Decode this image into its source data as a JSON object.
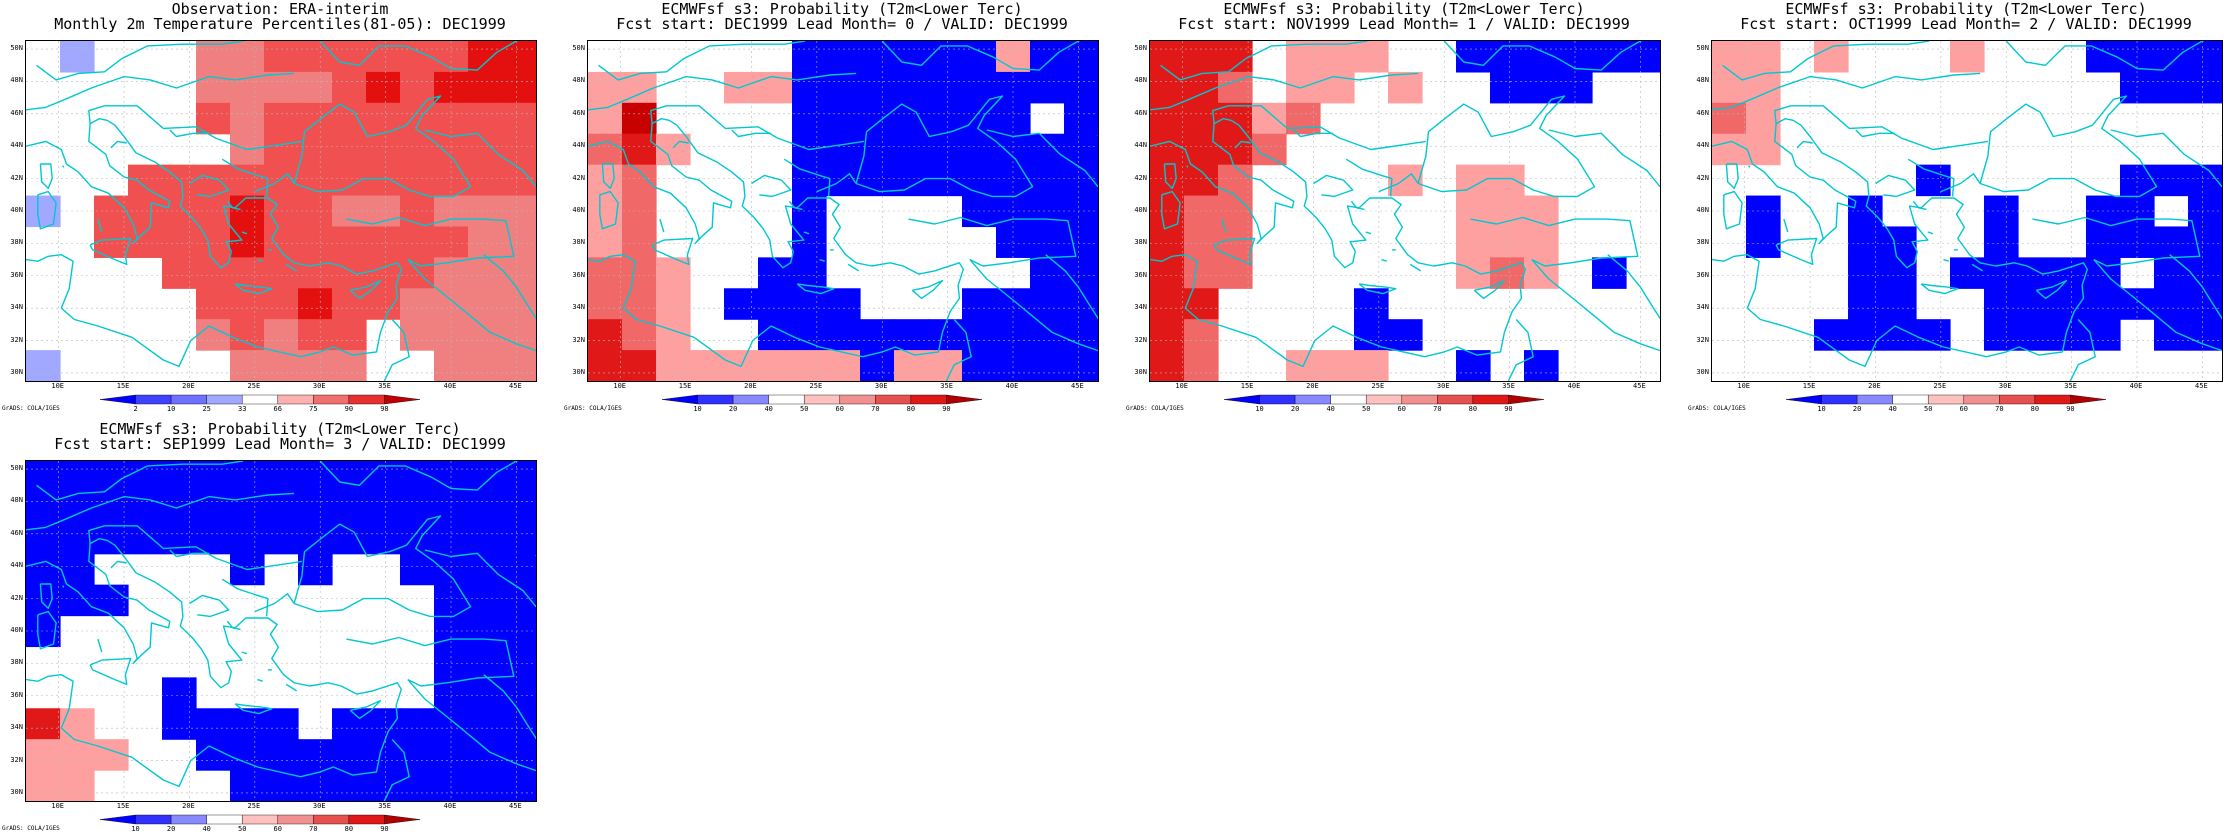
{
  "panels": [
    {
      "id": "obs",
      "title1": "Observation: ERA-interim",
      "title2": "Monthly 2m Temperature Percentiles(81-05): DEC1999",
      "scale": "percentile",
      "grid": [
        "W@WWWGGHHHHHHJJ",
        "WWWWWGGGGHJHJJJ",
        "WWWWWHGHHHHHHHH",
        "WWWWWWGHHHHHHHH",
        "WWWHHHHHHHHHHHH",
        "3WHHHHJHHGGHGGG",
        "WWHHHHJHHHHHHGG",
        "WWWWHHHHHHHHGGG",
        "WWWWWHHHJHHGGGG",
        "WWWWWGHGHHWGGGG",
        "@WWWWWGGGGWWGGG"
      ]
    },
    {
      "id": "fc0",
      "title1": "ECMWFsf s3: Probability (T2m<Lower Terc)",
      "title2": "Fcst start: DEC1999  Lead Month= 0 / VALID: DEC1999",
      "scale": "probability",
      "grid": [
        "WWWWWWBBBBBBRBB",
        "RRWWRRBBBBBBBBB",
        "RKWWWWBBBBBBBWB",
        "PSRWWWBBBBBBBBB",
        "RPWWWWBBBBBBBBB",
        "RPWWWWBWWWWBBBB",
        "RPWWWWBWWWWWBBB",
        "PPRWWBBWWWWWWBB",
        "PPRWBBBBWWWBBBB",
        "SPRWWBBBBBBBBBB",
        "SSRRRRRRBRRBBBB"
      ]
    },
    {
      "id": "fc1",
      "title1": "ECMWFsf s3: Probability (T2m<Lower Terc)",
      "title2": "Fcst start: NOV1999  Lead Month= 1 / VALID: DEC1999",
      "scale": "probability",
      "grid": [
        "SSSWRRRWWBBBBBB",
        "SSPWRRWRWWBBBWW",
        "SSSRPWWWWWWWWWW",
        "SSSPWWWWWWWWWWW",
        "SSPWWWWRWRRWWWW",
        "SPPWWWWWWRRRWWW",
        "SPPWWWWWWRRRWWW",
        "SPPWWWWWWRPRWBW",
        "SSWWWWBWWWWWWWW",
        "SPWWWWBBWWWWWWW",
        "SPWWRRRWWBWBWWW"
      ]
    },
    {
      "id": "fc2",
      "title1": "ECMWFsf s3: Probability (T2m<Lower Terc)",
      "title2": "Fcst start: OCT1999  Lead Month= 2 / VALID: DEC1999",
      "scale": "probability",
      "grid": [
        "RRWRWWWRWWWBBBB",
        "RRWWWWWWWWWWBBB",
        "PRWWWWWWWWWWWWW",
        "RRWWWWWWWWWWWWW",
        "WWWWWWBWWWWWBBB",
        "WBWWBWWWBWWBBWB",
        "WBWWBBWWBWWBBBB",
        "WWWWBBWBBBBBWBB",
        "WWWWBBWWBBBBBBB",
        "WWWBBBBWBBBBWBB",
        "WWWWWWWWWWWWWWW"
      ]
    },
    {
      "id": "fc3",
      "title1": "ECMWFsf s3: Probability (T2m<Lower Terc)",
      "title2": "Fcst start: SEP1999  Lead Month= 3 / VALID: DEC1999",
      "scale": "probability",
      "grid": [
        "BBBBBBBBBBBBBBB",
        "BBBBBBBBBBBBBBB",
        "BBBBBBBBBBBBBBB",
        "BBWWWWBWBWWBBBB",
        "BBBWWWWWWWWWBBB",
        "BWWWWWWWWWWWBBB",
        "WWWWWWWWWWWWBBB",
        "WWWWBWWWWWWWBBB",
        "SRWWBBBBWBBBBBB",
        "RRRWWBBBBBBBBBB",
        "RRWWWWBBBBBBBBB"
      ]
    }
  ],
  "color_key": {
    "W": "#ffffff",
    "B": "#0000ff",
    "3": "#a0a8ff",
    "R": "#ffa0a0",
    "P": "#f06868",
    "S": "#e01818",
    "K": "#c80000",
    "G": "#f08080",
    "H": "#f05050",
    "J": "#e41010",
    "@": "#a0a8ff"
  },
  "lat_labels": [
    "50N",
    "48N",
    "46N",
    "44N",
    "42N",
    "40N",
    "38N",
    "36N",
    "34N",
    "32N",
    "30N"
  ],
  "lon_labels": [
    "10E",
    "15E",
    "20E",
    "25E",
    "30E",
    "35E",
    "40E",
    "45E"
  ],
  "percentile_colorbar": {
    "labels": [
      "2",
      "10",
      "25",
      "33",
      "66",
      "75",
      "90",
      "98"
    ],
    "colors": [
      "#0000ff",
      "#4040ff",
      "#7070ff",
      "#a0a8ff",
      "#ffffff",
      "#ffb0b0",
      "#f07070",
      "#e83030",
      "#c00000"
    ]
  },
  "probability_colorbar": {
    "labels": [
      "10",
      "20",
      "40",
      "50",
      "60",
      "70",
      "80",
      "90"
    ],
    "colors": [
      "#0000ff",
      "#3030ff",
      "#8888ff",
      "#ffffff",
      "#ffc0c0",
      "#f09090",
      "#e85050",
      "#e01818",
      "#b00000"
    ]
  },
  "credit": "GrADS: COLA/IGES",
  "coast_color": "#00c8d0"
}
